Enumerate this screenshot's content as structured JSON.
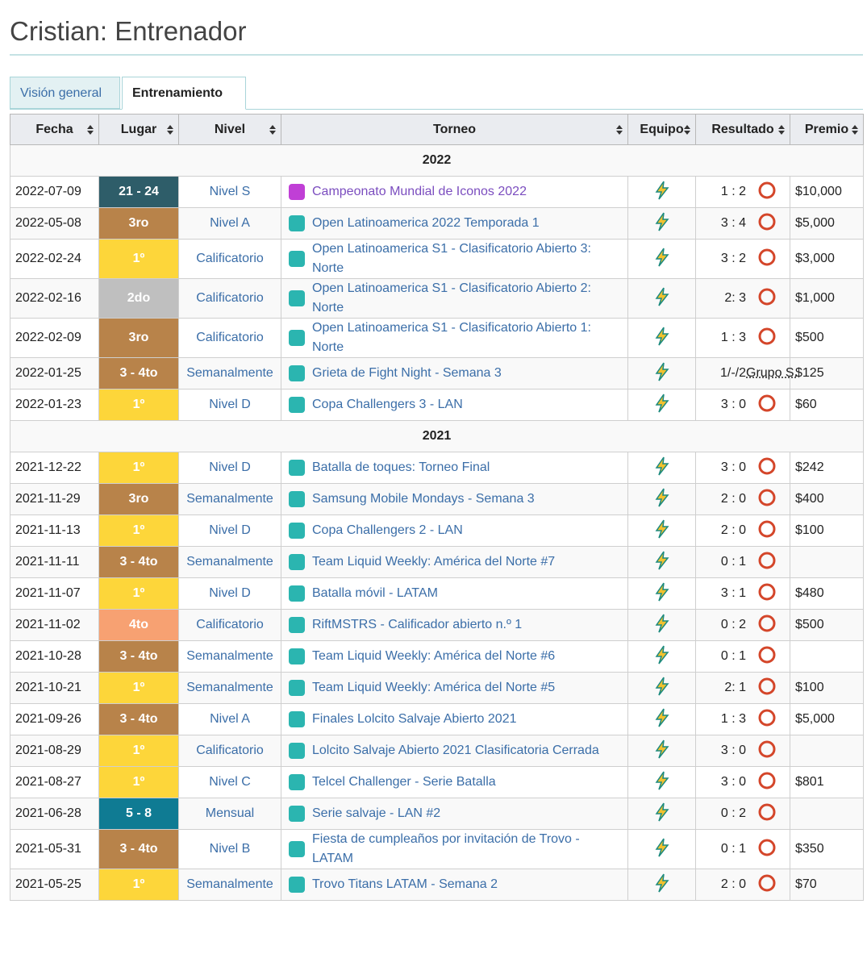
{
  "header": {
    "title": "Cristian: Entrenador"
  },
  "tabs": [
    {
      "label": "Visión general",
      "active": false
    },
    {
      "label": "Entrenamiento",
      "active": true
    }
  ],
  "table": {
    "columns": [
      "Fecha",
      "Lugar",
      "Nivel",
      "Torneo",
      "Equipo",
      "Resultado",
      "Premio"
    ],
    "groups": [
      {
        "year": "2022",
        "rows": [
          {
            "date": "2022-07-09",
            "place": "21 - 24",
            "place_color": "#2e5d69",
            "tier": "Nivel S",
            "tournament": "Campeonato Mundial de Iconos 2022",
            "visited": true,
            "score": "1 : 2",
            "prize": "$10,000"
          },
          {
            "date": "2022-05-08",
            "place": "3ro",
            "place_color": "#b8834a",
            "tier": "Nivel A",
            "tournament": "Open Latinoamerica 2022 Temporada 1",
            "score": "3 : 4",
            "prize": "$5,000"
          },
          {
            "date": "2022-02-24",
            "place": "1º",
            "place_color": "#fdd63a",
            "tier": "Calificatorio",
            "tournament": "Open Latinoamerica S1 - Clasificatorio Abierto 3: Norte",
            "score": "3 : 2",
            "prize": "$3,000"
          },
          {
            "date": "2022-02-16",
            "place": "2do",
            "place_color": "#bfbfbf",
            "tier": "Calificatorio",
            "tournament": "Open Latinoamerica S1 - Clasificatorio Abierto 2: Norte",
            "score": "2: 3",
            "prize": "$1,000"
          },
          {
            "date": "2022-02-09",
            "place": "3ro",
            "place_color": "#b8834a",
            "tier": "Calificatorio",
            "tournament": "Open Latinoamerica S1 - Clasificatorio Abierto 1: Norte",
            "score": "1 : 3",
            "prize": "$500"
          },
          {
            "date": "2022-01-25",
            "place": "3 - 4to",
            "place_color": "#b8834a",
            "tier": "Semanalmente",
            "tournament": "Grieta de Fight Night - Semana 3",
            "score": "1/-/2",
            "opponent": "Grupo S.",
            "prize": "$125"
          },
          {
            "date": "2022-01-23",
            "place": "1º",
            "place_color": "#fdd63a",
            "tier": "Nivel D",
            "tournament": "Copa Challengers 3 - LAN",
            "score": "3 : 0",
            "prize": "$60"
          }
        ]
      },
      {
        "year": "2021",
        "rows": [
          {
            "date": "2021-12-22",
            "place": "1º",
            "place_color": "#fdd63a",
            "tier": "Nivel D",
            "tournament": "Batalla de toques: Torneo Final",
            "score": "3 : 0",
            "prize": "$242"
          },
          {
            "date": "2021-11-29",
            "place": "3ro",
            "place_color": "#b8834a",
            "tier": "Semanalmente",
            "tournament": "Samsung Mobile Mondays - Semana 3",
            "score": "2 : 0",
            "prize": "$400"
          },
          {
            "date": "2021-11-13",
            "place": "1º",
            "place_color": "#fdd63a",
            "tier": "Nivel D",
            "tournament": "Copa Challengers 2 - LAN",
            "score": "2 : 0",
            "prize": "$100"
          },
          {
            "date": "2021-11-11",
            "place": "3 - 4to",
            "place_color": "#b8834a",
            "tier": "Semanalmente",
            "tournament": "Team Liquid Weekly: América del Norte #7",
            "score": "0 : 1"
          },
          {
            "date": "2021-11-07",
            "place": "1º",
            "place_color": "#fdd63a",
            "tier": "Nivel D",
            "tournament": "Batalla móvil - LATAM",
            "score": "3 : 1",
            "prize": "$480"
          },
          {
            "date": "2021-11-02",
            "place": "4to",
            "place_color": "#f7a172",
            "tier": "Calificatorio",
            "tournament": "RiftMSTRS - Calificador abierto n.º 1",
            "score": "0 : 2",
            "prize": "$500"
          },
          {
            "date": "2021-10-28",
            "place": "3 - 4to",
            "place_color": "#b8834a",
            "tier": "Semanalmente",
            "tournament": "Team Liquid Weekly: América del Norte #6",
            "score": "0 : 1"
          },
          {
            "date": "2021-10-21",
            "place": "1º",
            "place_color": "#fdd63a",
            "tier": "Semanalmente",
            "tournament": "Team Liquid Weekly: América del Norte #5",
            "score": "2: 1",
            "prize": "$100"
          },
          {
            "date": "2021-09-26",
            "place": "3 - 4to",
            "place_color": "#b8834a",
            "tier": "Nivel A",
            "tournament": "Finales Lolcito Salvaje Abierto 2021",
            "score": "1 : 3",
            "prize": "$5,000"
          },
          {
            "date": "2021-08-29",
            "place": "1º",
            "place_color": "#fdd63a",
            "tier": "Calificatorio",
            "tournament": "Lolcito Salvaje Abierto 2021 Clasificatoria Cerrada",
            "score": "3 : 0"
          },
          {
            "date": "2021-08-27",
            "place": "1º",
            "place_color": "#fdd63a",
            "tier": "Nivel C",
            "tournament": "Telcel Challenger - Serie Batalla",
            "score": "3 : 0",
            "prize": "$801"
          },
          {
            "date": "2021-06-28",
            "place": "5 - 8",
            "place_color": "#0f7b93",
            "tier": "Mensual",
            "tournament": "Serie salvaje - LAN #2",
            "score": "0 : 2"
          },
          {
            "date": "2021-05-31",
            "place": "3 - 4to",
            "place_color": "#b8834a",
            "tier": "Nivel B",
            "tournament": "Fiesta de cumpleaños por invitación de Trovo - LATAM",
            "score": "0 : 1",
            "prize": "$350"
          },
          {
            "date": "2021-05-25",
            "place": "1º",
            "place_color": "#fdd63a",
            "tier": "Semanalmente",
            "tournament": "Trovo Titans LATAM - Semana 2",
            "score": "2 : 0",
            "prize": "$70"
          }
        ]
      }
    ]
  }
}
